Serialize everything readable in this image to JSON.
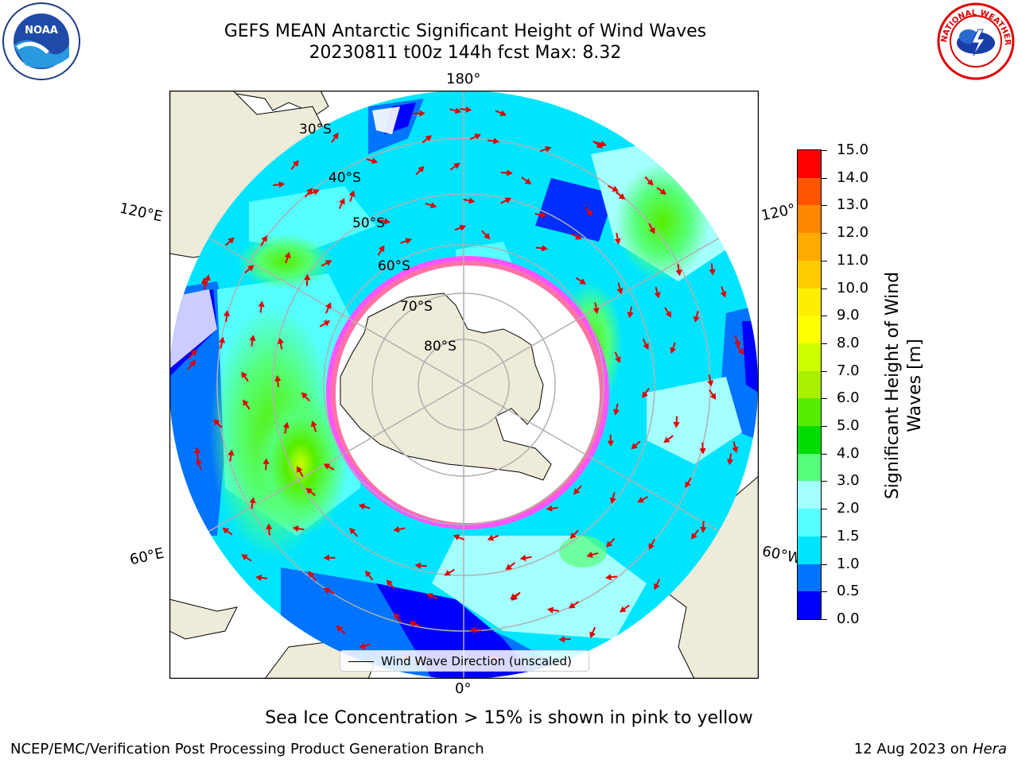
{
  "header": {
    "title_line1": "GEFS MEAN Antarctic Significant Height of Wind Waves",
    "title_line2": "20230811 t00z 144h fcst   Max: 8.32"
  },
  "logos": {
    "noaa_text": "NOAA",
    "noaa_ring_text": "NATIONAL OCEANIC AND ATMOSPHERIC ADMINISTRATION · U.S. DEPARTMENT OF COMMERCE",
    "nws_ring_text": "NATIONAL WEATHER SERVICE"
  },
  "map": {
    "longitude_labels": {
      "top": "180°",
      "bottom": "0°",
      "left_upper": "120°E",
      "left_lower": "60°E",
      "right_upper": "120°",
      "right_lower": "60°W"
    },
    "latitude_labels": [
      "30°S",
      "40°S",
      "50°S",
      "60°S",
      "70°S",
      "80°S"
    ],
    "legend_text": "Wind Wave Direction (unscaled)",
    "colors": {
      "land": "#efebd9",
      "ice_edge": "#ff55ff",
      "vector": "#e00000",
      "grid": "#b0b0b0"
    }
  },
  "colorbar": {
    "label_line1": "Significant Height of Wind",
    "label_line2": "Waves [m]",
    "tick_labels": [
      "15.0",
      "14.0",
      "13.0",
      "12.0",
      "11.0",
      "10.0",
      "9.0",
      "8.0",
      "7.0",
      "6.0",
      "5.0",
      "4.0",
      "3.0",
      "2.0",
      "1.5",
      "1.0",
      "0.5",
      "0.0"
    ],
    "levels": [
      0.0,
      0.5,
      1.0,
      1.5,
      2.0,
      3.0,
      4.0,
      5.0,
      6.0,
      7.0,
      8.0,
      9.0,
      10.0,
      11.0,
      12.0,
      13.0,
      14.0,
      15.0
    ],
    "colors": [
      "#0000ff",
      "#0073ff",
      "#00e5ff",
      "#55ffff",
      "#a4ffff",
      "#55ff77",
      "#00dd00",
      "#55ee00",
      "#aaee00",
      "#ccff00",
      "#ffff00",
      "#ffee00",
      "#ffcc00",
      "#ffaa00",
      "#ff8800",
      "#ff5500",
      "#ff0000"
    ]
  },
  "chart_data": {
    "type": "heatmap",
    "title": "GEFS MEAN Antarctic Significant Height of Wind Waves",
    "subtitle": "20230811 t00z 144h fcst   Max: 8.32",
    "variable": "Significant Height of Wind Waves [m]",
    "max_value": 8.32,
    "projection": "south polar stereographic",
    "color_levels_m": [
      0.0,
      0.5,
      1.0,
      1.5,
      2.0,
      3.0,
      4.0,
      5.0,
      6.0,
      7.0,
      8.0,
      9.0,
      10.0,
      11.0,
      12.0,
      13.0,
      14.0,
      15.0
    ],
    "notes": "Sea Ice Concentration > 15% is shown in pink to yellow"
  },
  "footer": {
    "note": "Sea Ice Concentration > 15% is shown in pink to yellow",
    "credit": "NCEP/EMC/Verification Post Processing Product Generation Branch",
    "date": "12 Aug 2023 on ",
    "machine": "Hera"
  }
}
